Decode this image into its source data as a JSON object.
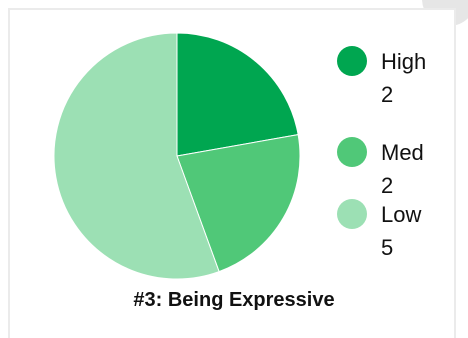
{
  "chart_data": {
    "type": "pie",
    "title": "#3: Being Expressive",
    "slices": [
      {
        "label": "High",
        "value": 2,
        "color": "#00a650"
      },
      {
        "label": "Med",
        "value": 2,
        "color": "#50c878"
      },
      {
        "label": "Low",
        "value": 5,
        "color": "#9ce0b4"
      }
    ],
    "start_angle_deg": 0,
    "direction": "clockwise",
    "legend_position": "right"
  }
}
